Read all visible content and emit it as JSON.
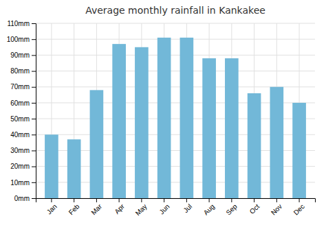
{
  "chart_data": {
    "type": "bar",
    "title": "Average monthly rainfall in Kankakee",
    "categories": [
      "Jan",
      "Feb",
      "Mar",
      "Apr",
      "May",
      "Jun",
      "Jul",
      "Aug",
      "Sep",
      "Oct",
      "Nov",
      "Dec"
    ],
    "values": [
      40,
      37,
      68,
      97,
      95,
      101,
      101,
      88,
      88,
      66,
      70,
      60
    ],
    "color": "#72b8d8",
    "ylim": [
      0,
      110
    ],
    "yticks": [
      {
        "value": 0,
        "label": "0mm"
      },
      {
        "value": 10,
        "label": "10mm"
      },
      {
        "value": 20,
        "label": "20mm"
      },
      {
        "value": 30,
        "label": "30mm"
      },
      {
        "value": 40,
        "label": "40mm"
      },
      {
        "value": 50,
        "label": "50mm"
      },
      {
        "value": 60,
        "label": "60mm"
      },
      {
        "value": 70,
        "label": "70mm"
      },
      {
        "value": 80,
        "label": "80mm"
      },
      {
        "value": 90,
        "label": "90mm"
      },
      {
        "value": 100,
        "label": "100mm"
      },
      {
        "value": 110,
        "label": "110mm"
      }
    ],
    "grid": true
  }
}
